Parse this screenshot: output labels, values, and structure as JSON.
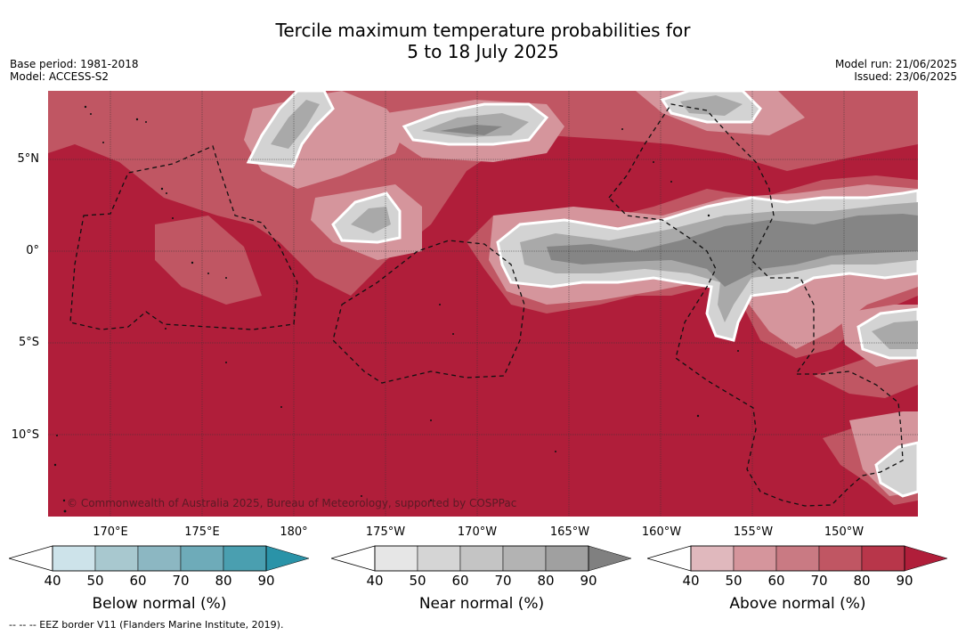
{
  "title_line1": "Tercile maximum temperature probabilities for",
  "title_line2": "5 to 18 July 2025",
  "base_period": "Base period: 1981-2018",
  "model": "Model: ACCESS-S2",
  "model_run": "Model run: 21/06/2025",
  "issued": "Issued: 23/06/2025",
  "lat_labels": [
    "5°N",
    "0°",
    "5°S",
    "10°S"
  ],
  "lon_labels": [
    "170°E",
    "175°E",
    "180°",
    "175°W",
    "170°W",
    "165°W",
    "160°W",
    "155°W",
    "150°W"
  ],
  "copyright": "© Commonwealth of Australia 2025, Bureau of Meteorology, supported by COSPPac",
  "colorbars": [
    {
      "title": "Below normal (%)",
      "ticks": [
        "40",
        "50",
        "60",
        "70",
        "80",
        "90"
      ],
      "colors": [
        "#cde3ea",
        "#a8c8cf",
        "#8cb7c2",
        "#6eabb9",
        "#4a9fb0",
        "#2a93a8"
      ]
    },
    {
      "title": "Near normal (%)",
      "ticks": [
        "40",
        "50",
        "60",
        "70",
        "80",
        "90"
      ],
      "colors": [
        "#e6e6e6",
        "#d5d5d5",
        "#c4c4c4",
        "#b3b3b3",
        "#a0a0a0",
        "#808080"
      ]
    },
    {
      "title": "Above normal (%)",
      "ticks": [
        "40",
        "50",
        "60",
        "70",
        "80",
        "90"
      ],
      "colors": [
        "#e0b8bd",
        "#d5959c",
        "#c97a83",
        "#c05663",
        "#b8364a",
        "#b01e3a"
      ]
    }
  ],
  "footnote": "--  --  -- EEZ border V11 (Flanders Marine Institute, 2019).",
  "map_colors": {
    "above_dark": "#b01e3a",
    "above_mid": "#c05663",
    "above_light": "#d5959c",
    "near_light": "#d3d3d3",
    "near_mid": "#a9a9a9",
    "near_dark": "#858585"
  }
}
